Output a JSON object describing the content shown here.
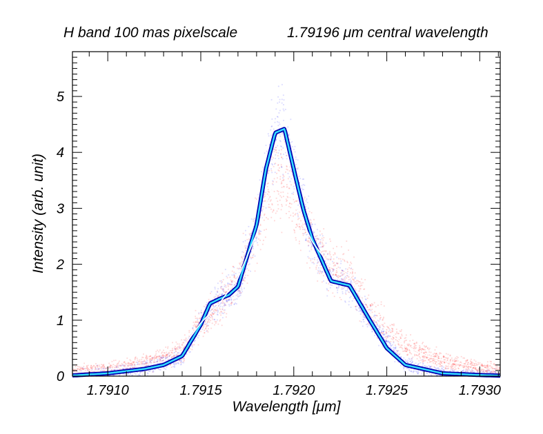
{
  "chart_data": {
    "type": "scatter",
    "title_left": "H band 100 mas pixelscale",
    "title_right": "1.79196 μm central wavelength",
    "xlabel": "Wavelength [μm]",
    "ylabel": "Intensity (arb. unit)",
    "xlim": [
      1.79081,
      1.79311
    ],
    "ylim": [
      0,
      5.8
    ],
    "x_ticks": [
      1.791,
      1.7915,
      1.792,
      1.7925,
      1.793
    ],
    "x_tick_labels": [
      "1.7910",
      "1.7915",
      "1.7920",
      "1.7925",
      "1.7930"
    ],
    "y_ticks": [
      0,
      1,
      2,
      3,
      4,
      5
    ],
    "y_tick_labels": [
      "0",
      "1",
      "2",
      "3",
      "4",
      "5"
    ],
    "series": [
      {
        "name": "scatter-red",
        "color": "#ff1a1a",
        "x": [
          1.7908,
          1.791,
          1.7912,
          1.7914,
          1.7915,
          1.7916,
          1.7917,
          1.7918,
          1.79185,
          1.7919,
          1.79195,
          1.792,
          1.7921,
          1.7922,
          1.7923,
          1.7924,
          1.7926,
          1.7928,
          1.793,
          1.7931
        ],
        "y": [
          0.06,
          0.13,
          0.22,
          0.45,
          0.95,
          1.3,
          1.75,
          2.55,
          3.1,
          3.45,
          3.4,
          3.1,
          2.4,
          1.95,
          1.8,
          1.15,
          0.55,
          0.28,
          0.15,
          0.1
        ]
      },
      {
        "name": "scatter-blue",
        "color": "#1a1aff",
        "x": [
          1.7908,
          1.791,
          1.7912,
          1.7914,
          1.7915,
          1.7916,
          1.7917,
          1.7918,
          1.79185,
          1.7919,
          1.79195,
          1.792,
          1.7921,
          1.7922,
          1.7923,
          1.7924,
          1.7926,
          1.7928,
          1.793,
          1.7931
        ],
        "y": [
          0.01,
          0.05,
          0.13,
          0.35,
          0.95,
          1.38,
          1.6,
          2.7,
          3.7,
          4.35,
          4.4,
          3.7,
          2.45,
          1.8,
          1.62,
          1.05,
          0.2,
          0.05,
          0.02,
          0.01
        ]
      },
      {
        "name": "fit-white",
        "color": "#ffffff",
        "x": [
          1.7908,
          1.791,
          1.7912,
          1.7913,
          1.7914,
          1.7915,
          1.7916,
          1.7917,
          1.7918,
          1.79185,
          1.7919,
          1.79195,
          1.792,
          1.79205,
          1.7921,
          1.7922,
          1.7923,
          1.7924,
          1.7925,
          1.7926,
          1.7927,
          1.7928,
          1.793,
          1.7931
        ],
        "y": [
          0.06,
          0.12,
          0.2,
          0.26,
          0.5,
          0.95,
          1.3,
          1.75,
          2.55,
          3.1,
          3.42,
          3.42,
          3.1,
          2.75,
          2.4,
          1.95,
          1.8,
          1.15,
          0.8,
          0.55,
          0.38,
          0.28,
          0.15,
          0.1
        ]
      },
      {
        "name": "fit-cyan",
        "color": "#33ddff",
        "x": [
          1.7908,
          1.791,
          1.7912,
          1.7913,
          1.7914,
          1.7915,
          1.79155,
          1.7916,
          1.79165,
          1.7917,
          1.7918,
          1.79185,
          1.7919,
          1.79195,
          1.792,
          1.79205,
          1.7921,
          1.7922,
          1.7923,
          1.7924,
          1.7925,
          1.7926,
          1.7928,
          1.793,
          1.7931
        ],
        "y": [
          0.01,
          0.05,
          0.13,
          0.2,
          0.36,
          0.92,
          1.3,
          1.38,
          1.45,
          1.6,
          2.7,
          3.7,
          4.35,
          4.42,
          3.7,
          3.0,
          2.45,
          1.7,
          1.62,
          1.05,
          0.5,
          0.2,
          0.05,
          0.02,
          0.01
        ]
      }
    ]
  }
}
